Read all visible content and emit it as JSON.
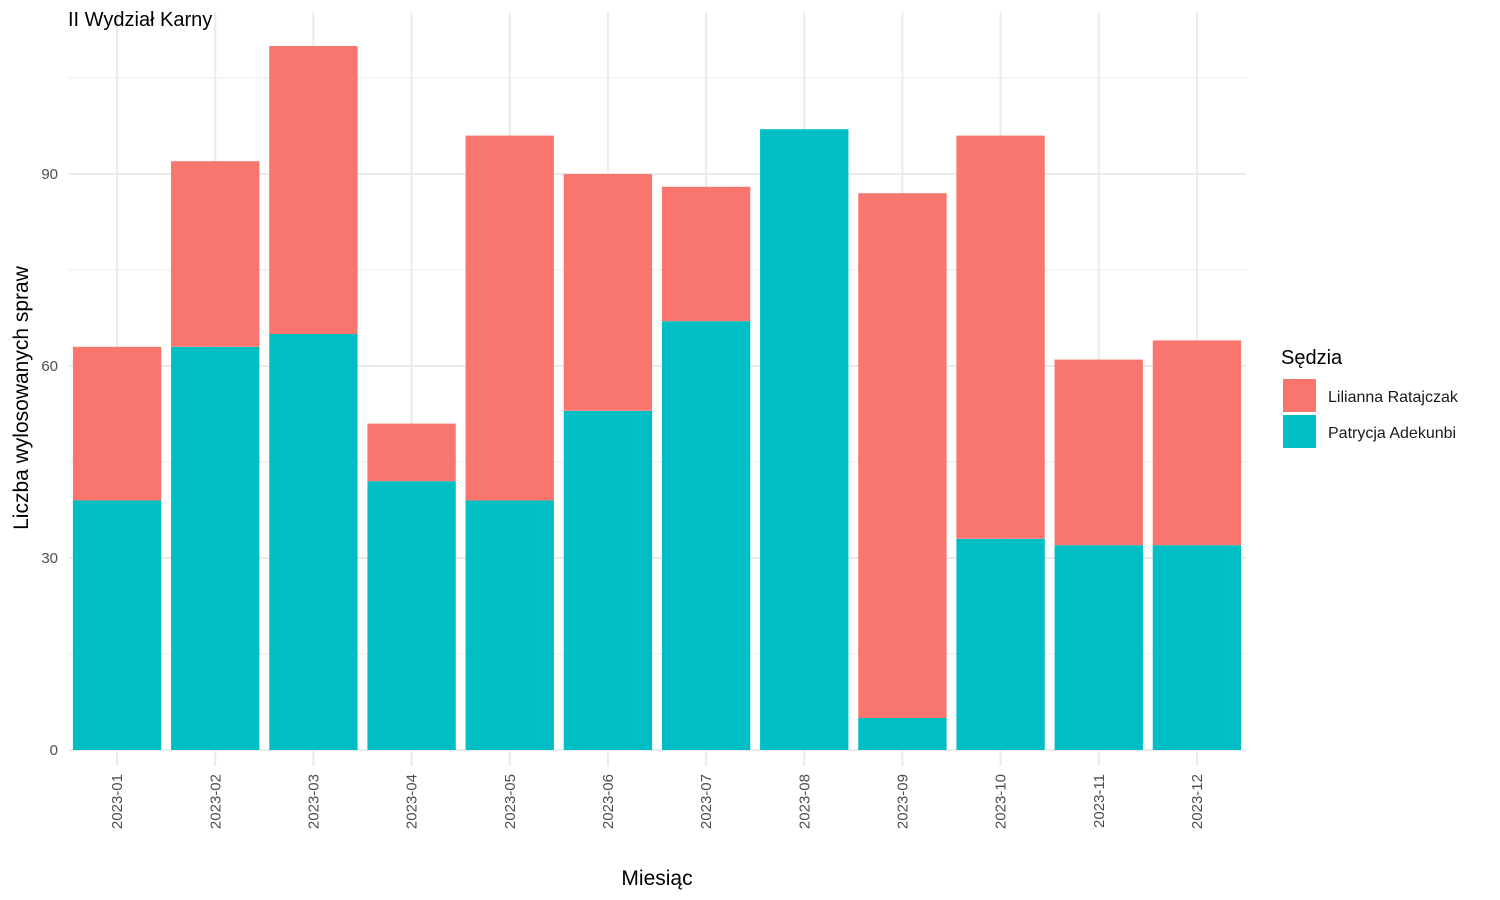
{
  "chart_data": {
    "type": "bar",
    "stacked": true,
    "title": "II Wydział Karny",
    "xlabel": "Miesiąc",
    "ylabel": "Liczba wylosowanych spraw",
    "categories": [
      "2023-01",
      "2023-02",
      "2023-03",
      "2023-04",
      "2023-05",
      "2023-06",
      "2023-07",
      "2023-08",
      "2023-09",
      "2023-10",
      "2023-11",
      "2023-12"
    ],
    "series": [
      {
        "name": "Patrycja Adekunbi",
        "color": "#00BFC4",
        "values": [
          39,
          63,
          65,
          42,
          39,
          53,
          67,
          97,
          5,
          33,
          32,
          32
        ]
      },
      {
        "name": "Lilianna Ratajczak",
        "color": "#F8766D",
        "values": [
          24,
          29,
          45,
          9,
          57,
          37,
          21,
          0,
          82,
          63,
          29,
          32
        ]
      }
    ],
    "ylim": [
      0,
      113
    ],
    "yticks": [
      0,
      30,
      60,
      90
    ],
    "ytick_labels": [
      "0",
      "30",
      "60",
      "90"
    ],
    "grid": true,
    "legend": {
      "title": "Sędzia",
      "position": "right",
      "entries": [
        {
          "label": "Lilianna Ratajczak",
          "color": "#F8766D"
        },
        {
          "label": "Patrycja Adekunbi",
          "color": "#00BFC4"
        }
      ]
    }
  }
}
